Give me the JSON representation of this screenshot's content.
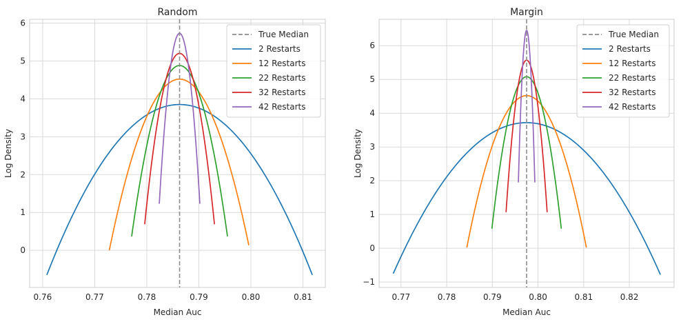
{
  "chart_data": [
    {
      "type": "line",
      "title": "Random",
      "xlabel": "Median Auc",
      "ylabel": "Log Density",
      "xlim": [
        0.7575,
        0.8143
      ],
      "ylim": [
        -0.98,
        6.1
      ],
      "xticks": [
        0.76,
        0.77,
        0.78,
        0.79,
        0.8,
        0.81
      ],
      "xtick_labels": [
        "0.76",
        "0.77",
        "0.78",
        "0.79",
        "0.80",
        "0.81"
      ],
      "yticks": [
        0,
        1,
        2,
        3,
        4,
        5,
        6
      ],
      "ytick_labels": [
        "0",
        "1",
        "2",
        "3",
        "4",
        "5",
        "6"
      ],
      "grid": true,
      "legend_position": "top-right",
      "reference_line": {
        "name": "True Median",
        "x": 0.7863,
        "color": "#8c8c8c",
        "style": "dashed"
      },
      "series": [
        {
          "name": "2 Restarts",
          "color": "#1f77b4",
          "x_start": 0.7608,
          "x_end": 0.8118,
          "peak_x": 0.7863,
          "peak_y": 3.85,
          "end_y": -0.65
        },
        {
          "name": "12 Restarts",
          "color": "#ff7f0e",
          "x_start": 0.7728,
          "x_end": 0.7996,
          "peak_x": 0.7863,
          "peak_y": 4.52,
          "end_y": 0.0
        },
        {
          "name": "22 Restarts",
          "color": "#2ca02c",
          "x_start": 0.7771,
          "x_end": 0.7955,
          "peak_x": 0.7863,
          "peak_y": 4.88,
          "end_y": 0.37
        },
        {
          "name": "32 Restarts",
          "color": "#d62728",
          "x_start": 0.7796,
          "x_end": 0.793,
          "peak_x": 0.7863,
          "peak_y": 5.2,
          "end_y": 0.69
        },
        {
          "name": "42 Restarts",
          "color": "#9467bd",
          "x_start": 0.7824,
          "x_end": 0.7902,
          "peak_x": 0.7863,
          "peak_y": 5.73,
          "end_y": 1.23
        }
      ]
    },
    {
      "type": "line",
      "title": "Margin",
      "xlabel": "Median Auc",
      "ylabel": "Log Density",
      "xlim": [
        0.7652,
        0.8298
      ],
      "ylim": [
        -1.16,
        6.78
      ],
      "xticks": [
        0.77,
        0.78,
        0.79,
        0.8,
        0.81,
        0.82
      ],
      "xtick_labels": [
        "0.77",
        "0.78",
        "0.79",
        "0.80",
        "0.81",
        "0.82"
      ],
      "yticks": [
        -1,
        0,
        1,
        2,
        3,
        4,
        5,
        6
      ],
      "ytick_labels": [
        "−1",
        "0",
        "1",
        "2",
        "3",
        "4",
        "5",
        "6"
      ],
      "grid": true,
      "legend_position": "top-right",
      "reference_line": {
        "name": "True Median",
        "x": 0.7975,
        "color": "#8c8c8c",
        "style": "dashed"
      },
      "series": [
        {
          "name": "2 Restarts",
          "color": "#1f77b4",
          "x_start": 0.7683,
          "x_end": 0.8268,
          "peak_x": 0.7975,
          "peak_y": 3.72,
          "end_y": -0.78
        },
        {
          "name": "12 Restarts",
          "color": "#ff7f0e",
          "x_start": 0.7844,
          "x_end": 0.8106,
          "peak_x": 0.7975,
          "peak_y": 4.52,
          "end_y": 0.02
        },
        {
          "name": "22 Restarts",
          "color": "#2ca02c",
          "x_start": 0.7899,
          "x_end": 0.8051,
          "peak_x": 0.7975,
          "peak_y": 5.08,
          "end_y": 0.58
        },
        {
          "name": "32 Restarts",
          "color": "#d62728",
          "x_start": 0.793,
          "x_end": 0.802,
          "peak_x": 0.7975,
          "peak_y": 5.57,
          "end_y": 1.07
        },
        {
          "name": "42 Restarts",
          "color": "#9467bd",
          "x_start": 0.7957,
          "x_end": 0.7993,
          "peak_x": 0.7975,
          "peak_y": 6.45,
          "end_y": 1.95
        }
      ]
    }
  ]
}
